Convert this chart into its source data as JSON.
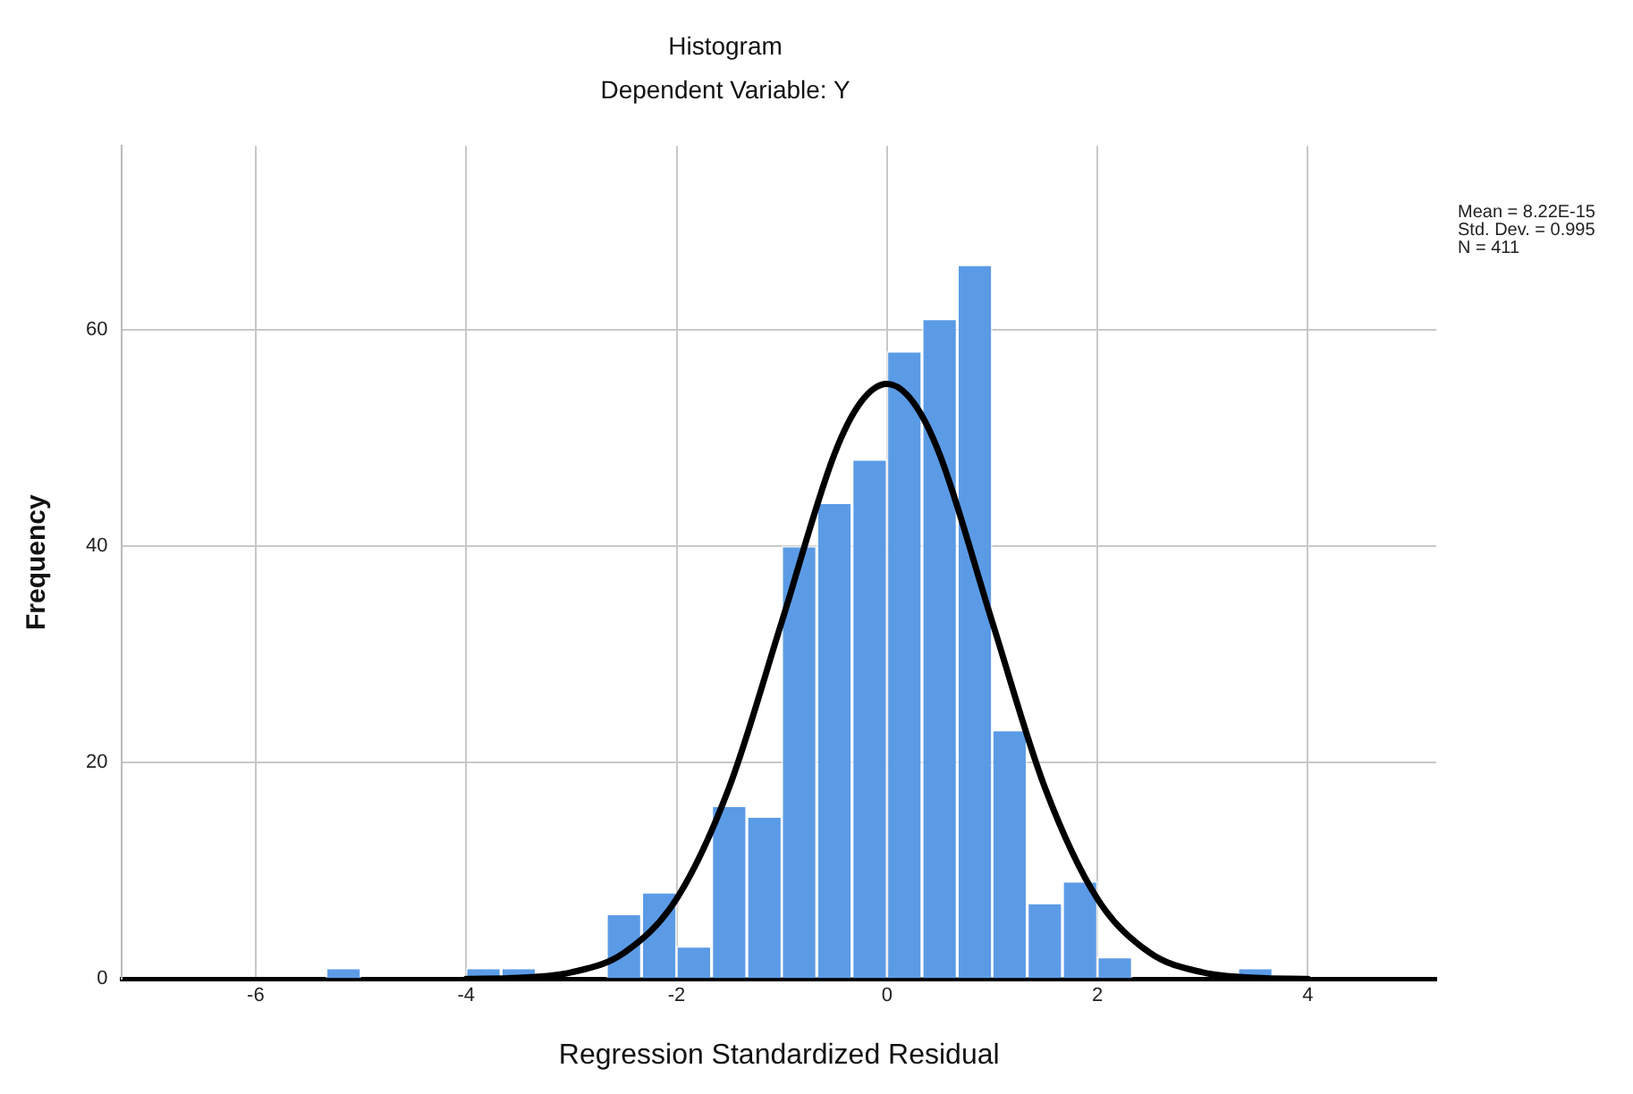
{
  "chart_data": {
    "type": "histogram",
    "title": "Histogram",
    "subtitle": "Dependent Variable: Y",
    "xlabel": "Regression Standardized Residual",
    "ylabel": "Frequency",
    "bins": [
      -5.33,
      -5,
      -4.67,
      -4.33,
      -4,
      -3.67,
      -3.33,
      -3,
      -2.67,
      -2.33,
      -2,
      -1.67,
      -1.33,
      -1,
      -0.67,
      -0.33,
      0,
      0.33,
      0.67,
      1,
      1.33,
      1.67,
      2,
      2.33,
      2.67,
      3,
      3.33,
      3.67
    ],
    "values": [
      1,
      0,
      0,
      0,
      1,
      1,
      0,
      0,
      6,
      8,
      3,
      16,
      15,
      40,
      44,
      48,
      58,
      61,
      66,
      23,
      7,
      9,
      2,
      0,
      0,
      0,
      1
    ],
    "color": "#5b9be6",
    "series": [
      {
        "type": "line",
        "color": "#000000",
        "x": [
          -4,
          -3.5,
          -3,
          -2.5,
          -2,
          -1.5,
          -1,
          -0.5,
          -0.25,
          0,
          0.25,
          0.5,
          1,
          1.5,
          2,
          2.5,
          3,
          3.5,
          4
        ],
        "values": [
          0,
          0.1,
          0.6,
          2.4,
          7.4,
          17.7,
          33,
          48.5,
          53.3,
          55,
          53.3,
          48.5,
          33,
          17.7,
          7.4,
          2.4,
          0.6,
          0.1,
          0
        ]
      }
    ],
    "xlim": [
      -7.27,
      5.22
    ],
    "xticks": [
      -6,
      -4,
      -2,
      0,
      2,
      4
    ],
    "ylim": [
      0,
      77
    ],
    "yticks": [
      0,
      20,
      40,
      60
    ],
    "grid": true,
    "legend": false,
    "marker": "none",
    "line_style": "solid",
    "annotations": [
      "Mean = 8.22E-15",
      "Std. Dev. = 0.995",
      "N = 411"
    ]
  }
}
